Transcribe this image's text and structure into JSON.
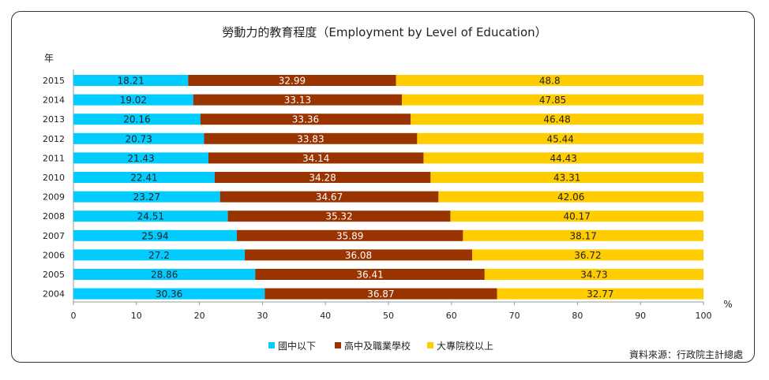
{
  "chart_data": {
    "type": "bar",
    "orientation": "horizontal",
    "stacked": true,
    "title": "勞動力的教育程度（Employment by Level of Education）",
    "ylabel": "年",
    "xlabel": "%",
    "xlim": [
      0,
      100
    ],
    "xticks": [
      "0",
      "10",
      "20",
      "30",
      "40",
      "50",
      "60",
      "70",
      "80",
      "90",
      "100"
    ],
    "categories": [
      "2015",
      "2014",
      "2013",
      "2012",
      "2011",
      "2010",
      "2009",
      "2008",
      "2007",
      "2006",
      "2005",
      "2004"
    ],
    "series": [
      {
        "name": "國中以下",
        "color": "#00ccff",
        "values": [
          18.21,
          19.02,
          20.16,
          20.73,
          21.43,
          22.41,
          23.27,
          24.51,
          25.94,
          27.2,
          28.86,
          30.36
        ],
        "labels": [
          "18.21",
          "19.02",
          "20.16",
          "20.73",
          "21.43",
          "22.41",
          "23.27",
          "24.51",
          "25.94",
          "27.2",
          "28.86",
          "30.36"
        ],
        "label_color": "#222222"
      },
      {
        "name": "高中及職業學校",
        "color": "#993300",
        "values": [
          32.99,
          33.13,
          33.36,
          33.83,
          34.14,
          34.28,
          34.67,
          35.32,
          35.89,
          36.08,
          36.41,
          36.87
        ],
        "labels": [
          "32.99",
          "33.13",
          "33.36",
          "33.83",
          "34.14",
          "34.28",
          "34.67",
          "35.32",
          "35.89",
          "36.08",
          "36.41",
          "36.87"
        ],
        "label_color": "#ffffff"
      },
      {
        "name": "大專院校以上",
        "color": "#ffcc00",
        "values": [
          48.8,
          47.85,
          46.48,
          45.44,
          44.43,
          43.31,
          42.06,
          40.17,
          38.17,
          36.72,
          34.73,
          32.77
        ],
        "labels": [
          "48.8",
          "47.85",
          "46.48",
          "45.44",
          "44.43",
          "43.31",
          "42.06",
          "40.17",
          "38.17",
          "36.72",
          "34.73",
          "32.77"
        ],
        "label_color": "#222222"
      }
    ],
    "legend": "bottom-center",
    "source": "資料來源：行政院主計總處"
  }
}
